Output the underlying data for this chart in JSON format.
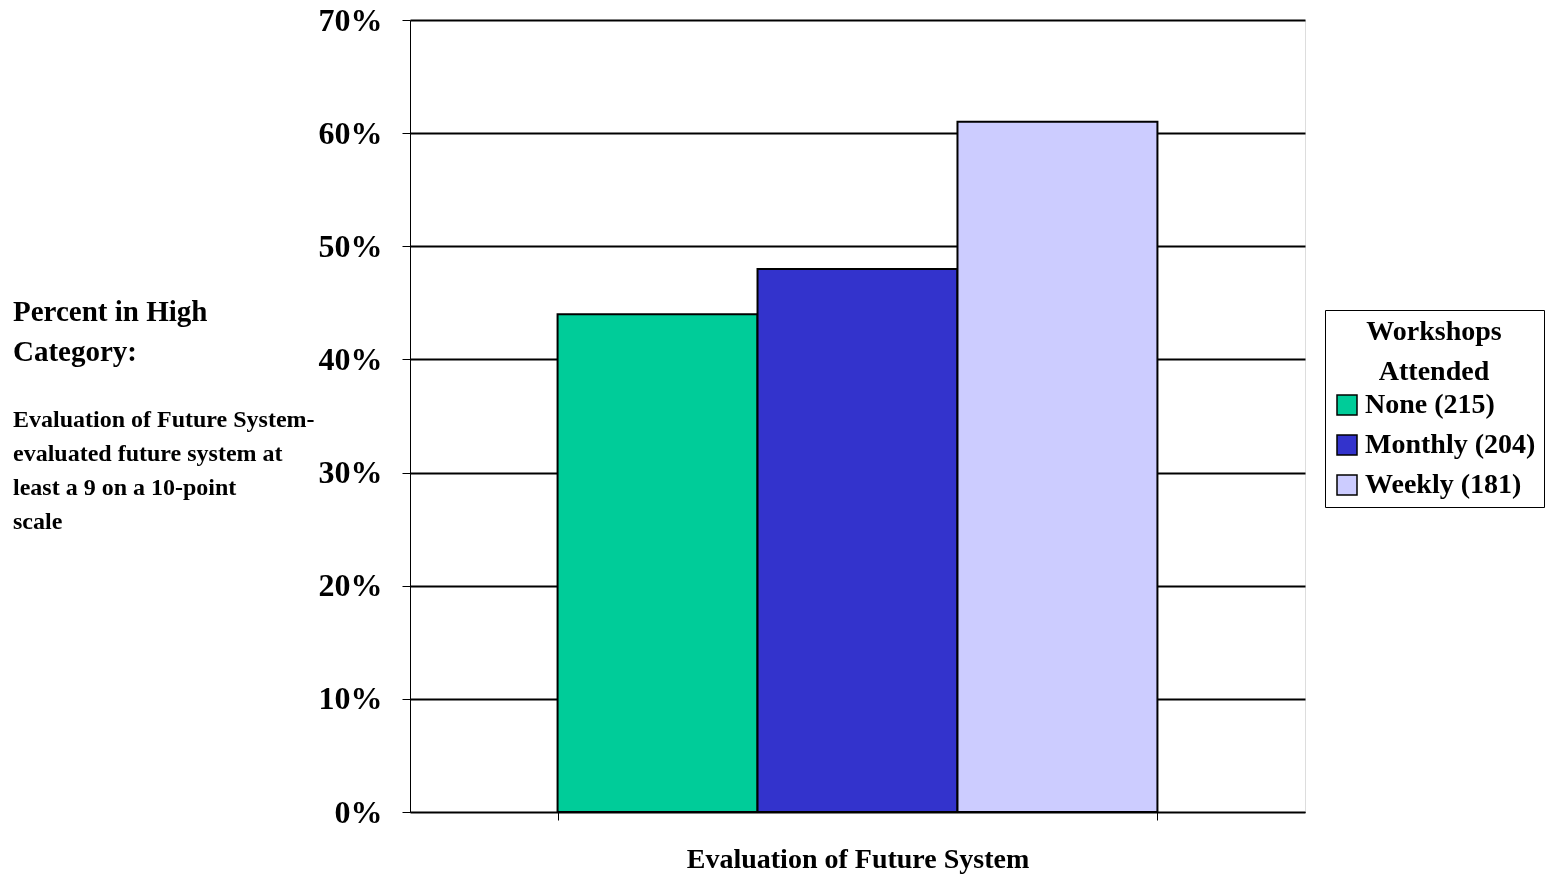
{
  "chart_data": {
    "type": "bar",
    "categories": [
      null
    ],
    "series": [
      {
        "name": "None (215)",
        "color": "#00cc99",
        "values": [
          44
        ]
      },
      {
        "name": "Monthly (204)",
        "color": "#3333cc",
        "values": [
          48
        ]
      },
      {
        "name": "Weekly (181)",
        "color": "#ccccff",
        "values": [
          61
        ]
      }
    ],
    "xlabel": "Evaluation of Future System",
    "ylabel": "Percent in High Category:",
    "annotations": [
      "Evaluation of Future System- evaluated future system at least a 9 on a 10-point scale"
    ],
    "legend_title": "Workshops Attended",
    "legend": "right",
    "ylim": [
      0,
      70
    ],
    "yticks": [
      {
        "value": 0,
        "label": "0%"
      },
      {
        "value": 10,
        "label": "10%"
      },
      {
        "value": 20,
        "label": "20%"
      },
      {
        "value": 30,
        "label": "30%"
      },
      {
        "value": 40,
        "label": "40%"
      },
      {
        "value": 50,
        "label": "50%"
      },
      {
        "value": 60,
        "label": "60%"
      },
      {
        "value": 70,
        "label": "70%"
      }
    ],
    "grid": "y",
    "tick_labels": "y"
  }
}
